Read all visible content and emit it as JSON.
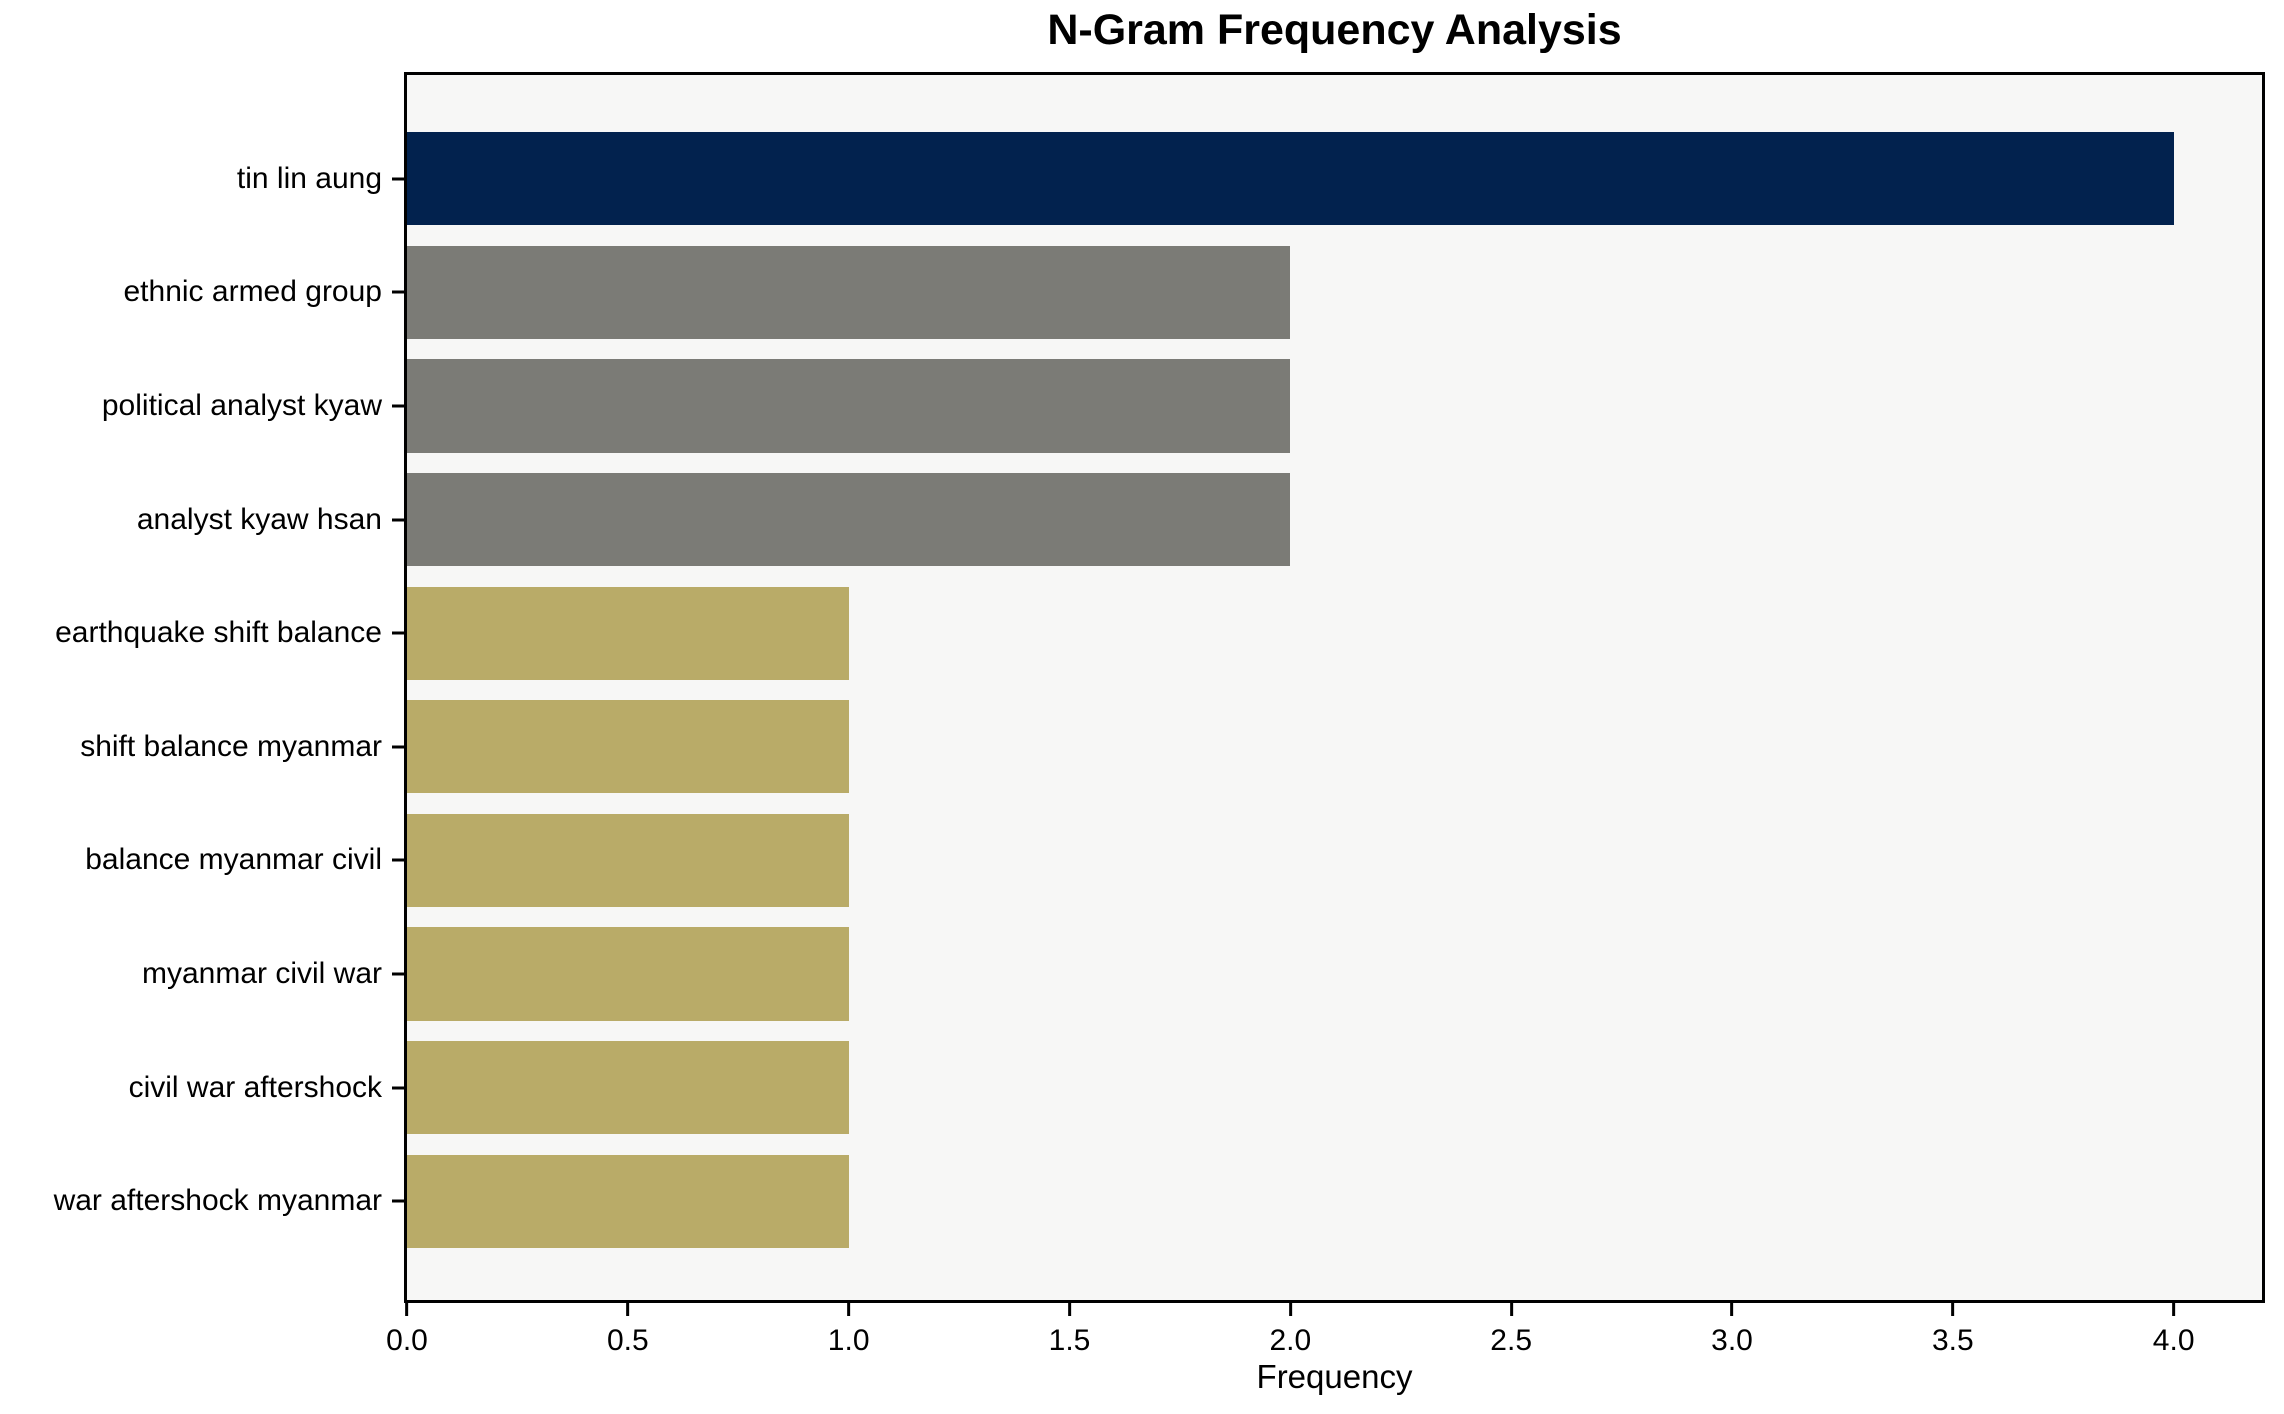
{
  "figure": {
    "background": "#ffffff",
    "plot_background": "#f7f7f6",
    "frame_color": "#000000",
    "text_color": "#000000"
  },
  "chart_data": {
    "type": "bar",
    "orientation": "horizontal",
    "title": "N-Gram Frequency Analysis",
    "xlabel": "Frequency",
    "ylabel": "",
    "categories": [
      "tin lin aung",
      "ethnic armed group",
      "political analyst kyaw",
      "analyst kyaw hsan",
      "earthquake shift balance",
      "shift balance myanmar",
      "balance myanmar civil",
      "myanmar civil war",
      "civil war aftershock",
      "war aftershock myanmar"
    ],
    "values": [
      4,
      2,
      2,
      2,
      1,
      1,
      1,
      1,
      1,
      1
    ],
    "bar_colors": [
      "#02224e",
      "#7b7b76",
      "#7b7b76",
      "#7b7b76",
      "#b9ab68",
      "#b9ab68",
      "#b9ab68",
      "#b9ab68",
      "#b9ab68",
      "#b9ab68"
    ],
    "x_ticks": [
      "0.0",
      "0.5",
      "1.0",
      "1.5",
      "2.0",
      "2.5",
      "3.0",
      "3.5",
      "4.0"
    ],
    "xlim": [
      0,
      4.2
    ],
    "grid": false,
    "legend": null,
    "bar_height_fraction": 0.82
  }
}
